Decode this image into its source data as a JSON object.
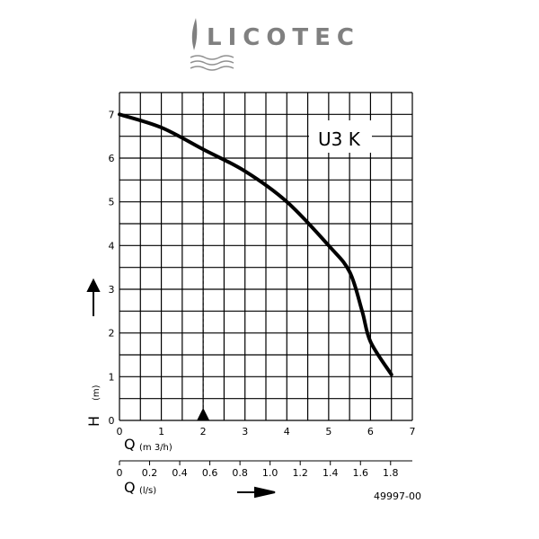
{
  "logo": {
    "text": "LICOTEC",
    "color": "#808080"
  },
  "chart_data": {
    "type": "line",
    "title": "",
    "curve_label": "U3 K",
    "x": [
      0,
      1,
      2,
      3,
      4,
      5,
      5.5,
      5.8,
      6.0,
      6.5
    ],
    "series": [
      {
        "values": [
          7.0,
          6.7,
          6.2,
          5.7,
          5.0,
          4.0,
          3.4,
          2.5,
          1.8,
          1.05
        ]
      }
    ],
    "xlim": [
      0,
      7
    ],
    "ylim": [
      0,
      7.5
    ],
    "xticks": [
      "0",
      "1",
      "2",
      "3",
      "4",
      "5",
      "6",
      "7"
    ],
    "yticks": [
      "0",
      "1",
      "2",
      "3",
      "4",
      "5",
      "6",
      "7"
    ],
    "xlabel": "Q",
    "xlabel_unit": "(m 3/h)",
    "ylabel": "H",
    "ylabel_unit": "(m)",
    "secondary_xaxis": {
      "label": "Q",
      "unit": "(l/s)",
      "ticks": [
        "0",
        "0.2",
        "0.4",
        "0.6",
        "0.8",
        "1.0",
        "1.2",
        "1.4",
        "1.6",
        "1.8"
      ],
      "conversion_m3h_per_ls": 3.6
    },
    "marker_x": 2,
    "grid": true,
    "reference": "49997-00"
  }
}
